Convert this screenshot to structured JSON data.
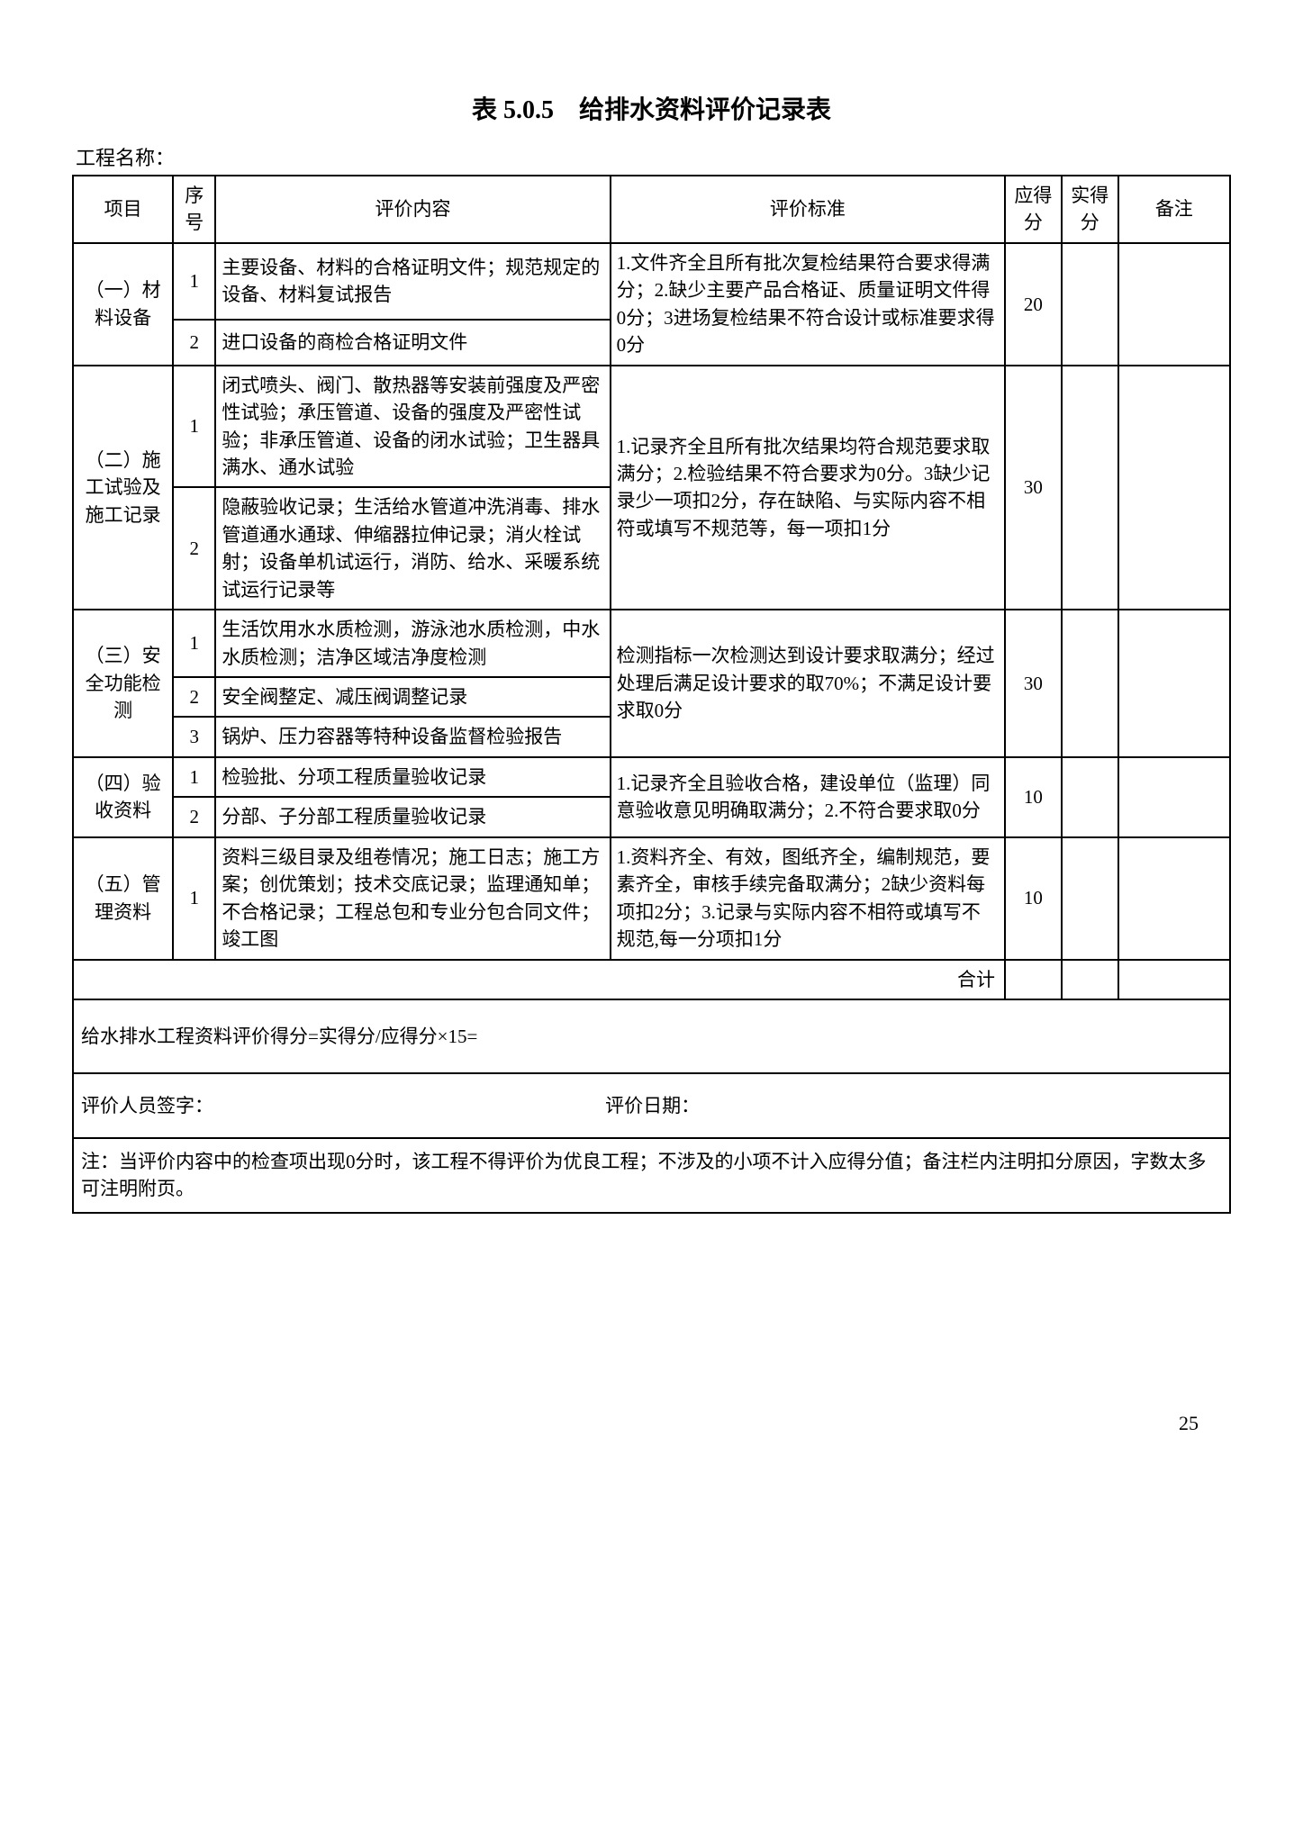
{
  "title": "表 5.0.5　给排水资料评价记录表",
  "project_label": "工程名称：",
  "columns": {
    "project": "项目",
    "num": "序号",
    "content": "评价内容",
    "standard": "评价标准",
    "should": "应得分",
    "actual": "实得分",
    "remark": "备注"
  },
  "sections": [
    {
      "name": "（一）材料设备",
      "rows": [
        {
          "num": "1",
          "content": "主要设备、材料的合格证明文件；规范规定的设备、材料复试报告"
        },
        {
          "num": "2",
          "content": "进口设备的商检合格证明文件"
        }
      ],
      "standard": "1.文件齐全且所有批次复检结果符合要求得满分；2.缺少主要产品合格证、质量证明文件得0分；3进场复检结果不符合设计或标准要求得0分",
      "should": "20"
    },
    {
      "name": "（二）施工试验及施工记录",
      "rows": [
        {
          "num": "1",
          "content": "闭式喷头、阀门、散热器等安装前强度及严密性试验；承压管道、设备的强度及严密性试验；非承压管道、设备的闭水试验；卫生器具满水、通水试验"
        },
        {
          "num": "2",
          "content": "隐蔽验收记录；生活给水管道冲洗消毒、排水管道通水通球、伸缩器拉伸记录；消火栓试射；设备单机试运行，消防、给水、采暖系统试运行记录等"
        }
      ],
      "standard": "1.记录齐全且所有批次结果均符合规范要求取满分；2.检验结果不符合要求为0分。3缺少记录少一项扣2分，存在缺陷、与实际内容不相符或填写不规范等，每一项扣1分",
      "should": "30"
    },
    {
      "name": "（三）安全功能检测",
      "rows": [
        {
          "num": "1",
          "content": "生活饮用水水质检测，游泳池水质检测，中水水质检测；洁净区域洁净度检测"
        },
        {
          "num": "2",
          "content": "安全阀整定、减压阀调整记录"
        },
        {
          "num": "3",
          "content": "锅炉、压力容器等特种设备监督检验报告"
        }
      ],
      "standard": "检测指标一次检测达到设计要求取满分；经过处理后满足设计要求的取70%；不满足设计要求取0分",
      "should": "30"
    },
    {
      "name": "（四）验收资料",
      "rows": [
        {
          "num": "1",
          "content": "检验批、分项工程质量验收记录"
        },
        {
          "num": "2",
          "content": "分部、子分部工程质量验收记录"
        }
      ],
      "standard": "1.记录齐全且验收合格，建设单位（监理）同意验收意见明确取满分；2.不符合要求取0分",
      "should": "10"
    },
    {
      "name": "（五）管理资料",
      "rows": [
        {
          "num": "1",
          "content": "资料三级目录及组卷情况；施工日志；施工方案；创优策划；技术交底记录；监理通知单；不合格记录；工程总包和专业分包合同文件；竣工图"
        }
      ],
      "standard": "1.资料齐全、有效，图纸齐全，编制规范，要素齐全，审核手续完备取满分；2缺少资料每项扣2分；3.记录与实际内容不相符或填写不规范,每一分项扣1分",
      "should": "10"
    }
  ],
  "total_label": "合计",
  "formula": "给水排水工程资料评价得分=实得分/应得分×15=",
  "sign_person": "评价人员签字：",
  "sign_date": "评价日期：",
  "note": "注：当评价内容中的检查项出现0分时，该工程不得评价为优良工程；不涉及的小项不计入应得分值；备注栏内注明扣分原因，字数太多可注明附页。",
  "page_number": "25"
}
